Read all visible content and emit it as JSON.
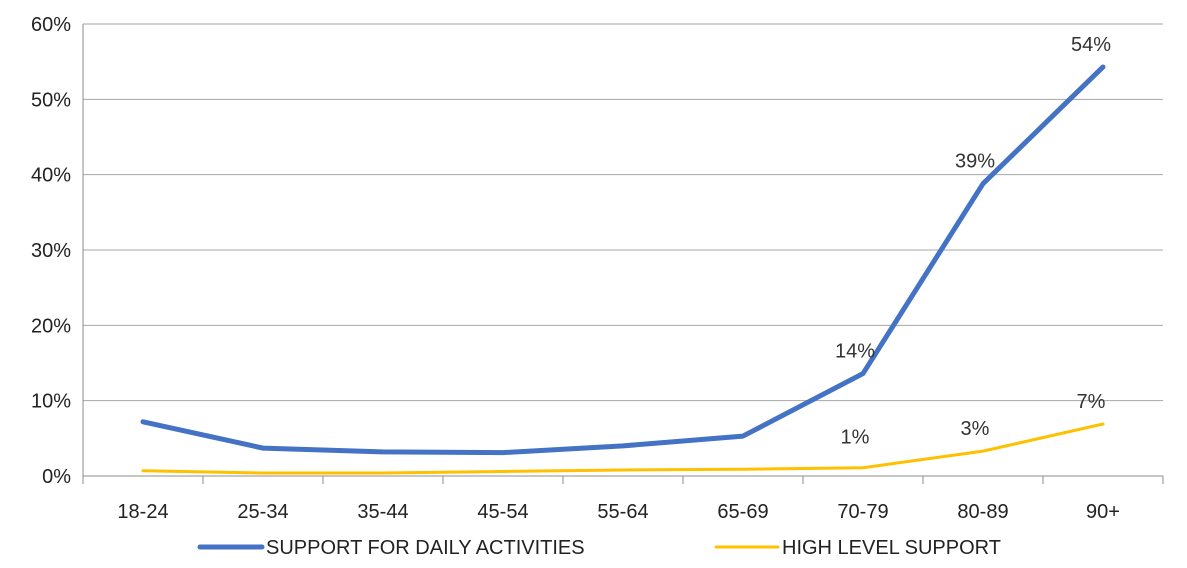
{
  "chart_data": {
    "type": "line",
    "categories": [
      "18-24",
      "25-34",
      "35-44",
      "45-54",
      "55-64",
      "65-69",
      "70-79",
      "80-89",
      "90+"
    ],
    "ylim": [
      0,
      0.6
    ],
    "yticks": [
      0,
      0.1,
      0.2,
      0.3,
      0.4,
      0.5,
      0.6
    ],
    "ytick_labels": [
      "0%",
      "10%",
      "20%",
      "30%",
      "40%",
      "50%",
      "60%"
    ],
    "grid": true,
    "legend_position": "bottom",
    "series": [
      {
        "name": "SUPPORT FOR DAILY ACTIVITIES",
        "color": "#4472C4",
        "values": [
          0.072,
          0.037,
          0.032,
          0.031,
          0.04,
          0.053,
          0.136,
          0.388,
          0.543
        ],
        "data_labels": [
          "",
          "",
          "",
          "",
          "",
          "",
          "14%",
          "39%",
          "54%"
        ]
      },
      {
        "name": "HIGH LEVEL SUPPORT",
        "color": "#FFC000",
        "values": [
          0.007,
          0.004,
          0.004,
          0.006,
          0.008,
          0.009,
          0.011,
          0.033,
          0.069
        ],
        "data_labels": [
          "",
          "",
          "",
          "",
          "",
          "",
          "1%",
          "3%",
          "7%"
        ]
      }
    ]
  }
}
